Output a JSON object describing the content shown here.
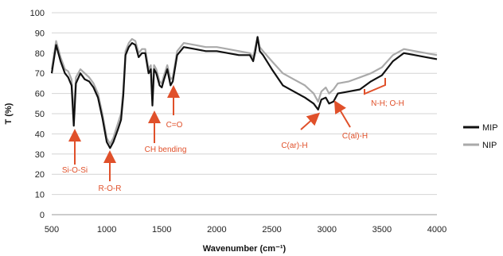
{
  "chart_data": {
    "type": "line",
    "xlabel": "Wavenumber (cm⁻¹)",
    "ylabel": "T (%)",
    "xlim": [
      500,
      4000
    ],
    "ylim": [
      0,
      100
    ],
    "xticks": [
      500,
      1000,
      1500,
      2000,
      2500,
      3000,
      3500,
      4000
    ],
    "yticks": [
      0,
      10,
      20,
      30,
      40,
      50,
      60,
      70,
      80,
      90,
      100
    ],
    "grid": "horizontal",
    "legend_position": "right",
    "series": [
      {
        "name": "MIP",
        "color": "#111111",
        "points": [
          [
            500,
            70
          ],
          [
            540,
            84
          ],
          [
            580,
            76
          ],
          [
            620,
            70
          ],
          [
            650,
            68
          ],
          [
            680,
            64
          ],
          [
            700,
            44
          ],
          [
            720,
            65
          ],
          [
            760,
            70
          ],
          [
            800,
            67
          ],
          [
            840,
            66
          ],
          [
            880,
            63
          ],
          [
            920,
            58
          ],
          [
            960,
            48
          ],
          [
            1000,
            36
          ],
          [
            1030,
            33
          ],
          [
            1060,
            36
          ],
          [
            1100,
            42
          ],
          [
            1130,
            47
          ],
          [
            1150,
            59
          ],
          [
            1170,
            79
          ],
          [
            1200,
            83
          ],
          [
            1230,
            85
          ],
          [
            1260,
            84
          ],
          [
            1290,
            78
          ],
          [
            1320,
            80
          ],
          [
            1350,
            80
          ],
          [
            1380,
            70
          ],
          [
            1400,
            72
          ],
          [
            1415,
            54
          ],
          [
            1430,
            72
          ],
          [
            1450,
            70
          ],
          [
            1480,
            64
          ],
          [
            1500,
            63
          ],
          [
            1520,
            67
          ],
          [
            1550,
            72
          ],
          [
            1580,
            64
          ],
          [
            1600,
            66
          ],
          [
            1640,
            79
          ],
          [
            1700,
            83
          ],
          [
            1800,
            82
          ],
          [
            1900,
            81
          ],
          [
            2000,
            81
          ],
          [
            2100,
            80
          ],
          [
            2200,
            79
          ],
          [
            2300,
            79
          ],
          [
            2330,
            76
          ],
          [
            2350,
            81
          ],
          [
            2370,
            88
          ],
          [
            2390,
            81
          ],
          [
            2420,
            79
          ],
          [
            2500,
            72
          ],
          [
            2600,
            64
          ],
          [
            2700,
            61
          ],
          [
            2800,
            58
          ],
          [
            2880,
            55
          ],
          [
            2920,
            52
          ],
          [
            2950,
            57
          ],
          [
            2990,
            58
          ],
          [
            3020,
            55
          ],
          [
            3060,
            56
          ],
          [
            3100,
            60
          ],
          [
            3200,
            61
          ],
          [
            3300,
            62
          ],
          [
            3400,
            66
          ],
          [
            3500,
            69
          ],
          [
            3600,
            76
          ],
          [
            3700,
            80
          ],
          [
            3800,
            79
          ],
          [
            3900,
            78
          ],
          [
            4000,
            77
          ]
        ]
      },
      {
        "name": "NIP",
        "color": "#aaaaaa",
        "points": [
          [
            500,
            72
          ],
          [
            540,
            86
          ],
          [
            580,
            78
          ],
          [
            620,
            72
          ],
          [
            650,
            71
          ],
          [
            680,
            67
          ],
          [
            700,
            49
          ],
          [
            720,
            68
          ],
          [
            760,
            72
          ],
          [
            800,
            70
          ],
          [
            840,
            68
          ],
          [
            880,
            65
          ],
          [
            920,
            60
          ],
          [
            960,
            50
          ],
          [
            1000,
            38
          ],
          [
            1030,
            35
          ],
          [
            1060,
            38
          ],
          [
            1100,
            45
          ],
          [
            1130,
            50
          ],
          [
            1150,
            62
          ],
          [
            1170,
            81
          ],
          [
            1200,
            85
          ],
          [
            1230,
            87
          ],
          [
            1260,
            86
          ],
          [
            1290,
            80
          ],
          [
            1320,
            82
          ],
          [
            1350,
            82
          ],
          [
            1380,
            72
          ],
          [
            1400,
            74
          ],
          [
            1415,
            58
          ],
          [
            1430,
            74
          ],
          [
            1450,
            72
          ],
          [
            1480,
            66
          ],
          [
            1500,
            65
          ],
          [
            1520,
            69
          ],
          [
            1550,
            74
          ],
          [
            1580,
            67
          ],
          [
            1600,
            68
          ],
          [
            1640,
            81
          ],
          [
            1700,
            85
          ],
          [
            1800,
            84
          ],
          [
            1900,
            83
          ],
          [
            2000,
            83
          ],
          [
            2100,
            82
          ],
          [
            2200,
            81
          ],
          [
            2300,
            80
          ],
          [
            2330,
            78
          ],
          [
            2350,
            83
          ],
          [
            2370,
            88
          ],
          [
            2390,
            83
          ],
          [
            2420,
            81
          ],
          [
            2500,
            76
          ],
          [
            2600,
            70
          ],
          [
            2700,
            67
          ],
          [
            2800,
            64
          ],
          [
            2880,
            60
          ],
          [
            2920,
            56
          ],
          [
            2950,
            61
          ],
          [
            2990,
            63
          ],
          [
            3020,
            60
          ],
          [
            3060,
            62
          ],
          [
            3100,
            65
          ],
          [
            3200,
            66
          ],
          [
            3300,
            68
          ],
          [
            3400,
            70
          ],
          [
            3500,
            73
          ],
          [
            3600,
            79
          ],
          [
            3700,
            82
          ],
          [
            3800,
            81
          ],
          [
            3900,
            80
          ],
          [
            4000,
            79
          ]
        ]
      }
    ],
    "annotations": [
      {
        "text": "Si-O-Si",
        "x": 700
      },
      {
        "text": "R-O-R",
        "x": 1030
      },
      {
        "text": "CH bending",
        "x": 1415
      },
      {
        "text": "C=O",
        "x": 1600
      },
      {
        "text": "C(ar)-H",
        "x": 2920
      },
      {
        "text": "C(al)-H",
        "x": 3060
      },
      {
        "text": "N-H; O-H",
        "x": 3400
      }
    ]
  },
  "legend": [
    {
      "label": "MIP",
      "color": "#111111"
    },
    {
      "label": "NIP",
      "color": "#aaaaaa"
    }
  ],
  "annotation_color": "#e0502a"
}
